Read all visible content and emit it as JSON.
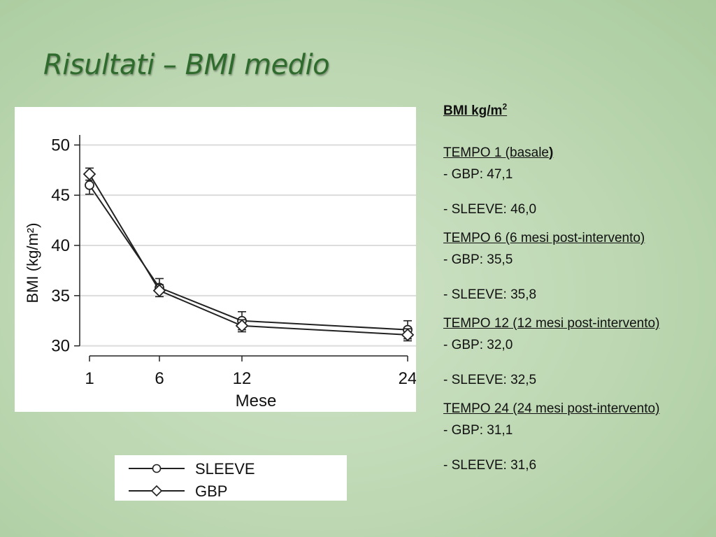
{
  "slide": {
    "title": "Risultati – BMI medio"
  },
  "chart_data": {
    "type": "line",
    "x": [
      1,
      6,
      12,
      24
    ],
    "xticks": [
      "1",
      "6",
      "12",
      "24"
    ],
    "xlabel": "Mese",
    "ylabel": "BMI (kg/m²)",
    "yticks": [
      30,
      35,
      40,
      45,
      50
    ],
    "ylim": [
      29,
      51
    ],
    "grid": true,
    "legend_placement": "bottom",
    "series": [
      {
        "name": "SLEEVE",
        "marker": "circle",
        "values": [
          46.0,
          35.8,
          32.5,
          31.6
        ],
        "errors": [
          0.9,
          0.9,
          0.9,
          0.9
        ]
      },
      {
        "name": "GBP",
        "marker": "diamond",
        "values": [
          47.1,
          35.5,
          32.0,
          31.1
        ],
        "errors": [
          0.6,
          0.6,
          0.6,
          0.6
        ]
      }
    ]
  },
  "notes": {
    "unit_title": "BMI kg/m",
    "unit_sup": "2",
    "times": [
      {
        "head_text": "TEMPO 1 (basale",
        "head_close": ")",
        "gbp": "- GBP: 47,1",
        "sleeve": "- SLEEVE: 46,0"
      },
      {
        "head_text": "TEMPO 6 (6 mesi post-intervento)",
        "head_close": "",
        "gbp": "- GBP: 35,5",
        "sleeve": "- SLEEVE: 35,8"
      },
      {
        "head_text": "TEMPO 12 (12 mesi post-intervento)",
        "head_close": "",
        "gbp": "- GBP: 32,0",
        "sleeve": "- SLEEVE: 32,5"
      },
      {
        "head_text": "TEMPO 24 (24 mesi post-intervento)",
        "head_close": "",
        "gbp": "- GBP: 31,1",
        "sleeve": "- SLEEVE: 31,6"
      }
    ]
  }
}
